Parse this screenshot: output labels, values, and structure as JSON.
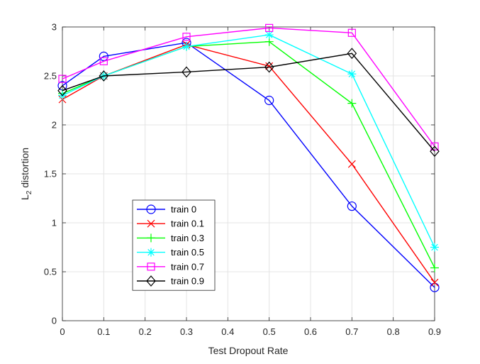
{
  "chart_data": {
    "type": "line",
    "xlabel": "Test Dropout Rate",
    "ylabel_main": "L",
    "ylabel_sub": "2",
    "ylabel_rest": " distortion",
    "xlim": [
      0,
      0.9
    ],
    "ylim": [
      0,
      3
    ],
    "xticks": [
      0,
      0.1,
      0.2,
      0.3,
      0.4,
      0.5,
      0.6,
      0.7,
      0.8,
      0.9
    ],
    "xtick_labels": [
      "0",
      "0.1",
      "0.2",
      "0.3",
      "0.4",
      "0.5",
      "0.6",
      "0.7",
      "0.8",
      "0.9"
    ],
    "yticks": [
      0,
      0.5,
      1,
      1.5,
      2,
      2.5,
      3
    ],
    "ytick_labels": [
      "0",
      "0.5",
      "1",
      "1.5",
      "2",
      "2.5",
      "3"
    ],
    "grid": true,
    "legend_position": "lower-left",
    "x": [
      0,
      0.1,
      0.3,
      0.5,
      0.7,
      0.9
    ],
    "series": [
      {
        "name": "train 0",
        "color": "#0000ff",
        "marker": "circle",
        "values": [
          2.4,
          2.7,
          2.84,
          2.25,
          1.17,
          0.34
        ]
      },
      {
        "name": "train 0.1",
        "color": "#ff0000",
        "marker": "x",
        "values": [
          2.26,
          2.5,
          2.82,
          2.6,
          1.6,
          0.39
        ]
      },
      {
        "name": "train 0.3",
        "color": "#00ff00",
        "marker": "plus",
        "values": [
          2.32,
          2.5,
          2.8,
          2.85,
          2.22,
          0.54
        ]
      },
      {
        "name": "train 0.5",
        "color": "#00ffff",
        "marker": "asterisk",
        "values": [
          2.3,
          2.5,
          2.8,
          2.92,
          2.52,
          0.75
        ]
      },
      {
        "name": "train 0.7",
        "color": "#ff00ff",
        "marker": "square",
        "values": [
          2.47,
          2.65,
          2.9,
          2.99,
          2.94,
          1.78
        ]
      },
      {
        "name": "train 0.9",
        "color": "#000000",
        "marker": "diamond",
        "values": [
          2.35,
          2.5,
          2.54,
          2.59,
          2.73,
          1.73
        ]
      }
    ]
  }
}
